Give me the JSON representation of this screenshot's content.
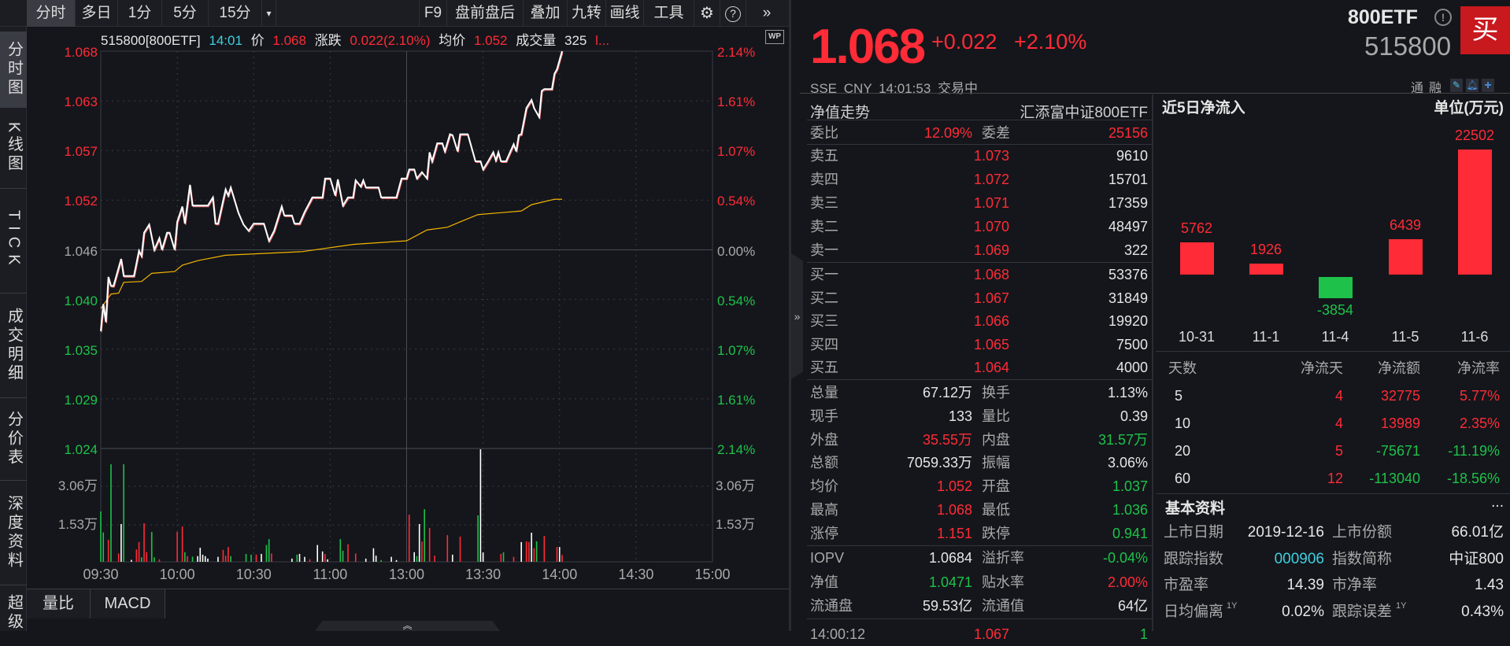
{
  "toolbar": {
    "left_tabs": [
      "分时",
      "多日",
      "1分",
      "5分",
      "15分"
    ],
    "active_tab": "分时",
    "dropdown_icon": "caret-down-icon",
    "right_items": [
      "F9",
      "盘前盘后",
      "叠加",
      "九转",
      "画线",
      "工具"
    ],
    "icons": [
      "gear-icon",
      "help-icon",
      "double-chevron-right-icon"
    ]
  },
  "sidebar": {
    "tabs": [
      "分时图",
      "K线图",
      "TICK",
      "成交明细",
      "分价表",
      "深度资料",
      "超级"
    ],
    "active": "分时图"
  },
  "info_line": {
    "code": "515800[800ETF]",
    "time": "14:01",
    "price_label": "价",
    "price": "1.068",
    "change_label": "涨跌",
    "change": "0.022(2.10%)",
    "avg_label": "均价",
    "avg": "1.052",
    "volume_label": "成交量",
    "volume": "325",
    "more": "l..."
  },
  "chart": {
    "type": "line",
    "prev_close": 1.046,
    "y_left_ticks": [
      "1.068",
      "1.063",
      "1.057",
      "1.052",
      "1.046",
      "1.040",
      "1.035",
      "1.029",
      "1.024"
    ],
    "y_right_ticks": [
      "2.14%",
      "1.61%",
      "1.07%",
      "0.54%",
      "0.00%",
      "0.54%",
      "1.07%",
      "1.61%",
      "2.14%"
    ],
    "ylim": [
      1.024,
      1.068
    ],
    "volume_ticks": [
      "3.06万",
      "1.53万"
    ],
    "volume_ylim": [
      0,
      4.59
    ],
    "x_ticks": [
      "09:30",
      "10:00",
      "10:30",
      "11:00",
      "13:00",
      "13:30",
      "14:00",
      "14:30",
      "15:00"
    ],
    "colors": {
      "price": "#ffffff",
      "avg": "#f5b400",
      "up": "#ff2b37",
      "down": "#1ec24b",
      "flat": "#ffffff"
    },
    "price": [
      [
        "09:30",
        1.037
      ],
      [
        "09:31",
        1.04
      ],
      [
        "09:32",
        1.038
      ],
      [
        "09:33",
        1.043
      ],
      [
        "09:34",
        1.042
      ],
      [
        "09:35",
        1.042
      ],
      [
        "09:38",
        1.045
      ],
      [
        "09:39",
        1.0431
      ],
      [
        "09:43",
        1.0431
      ],
      [
        "09:45",
        1.0459
      ],
      [
        "09:46",
        1.0453
      ],
      [
        "09:47",
        1.0479
      ],
      [
        "09:49",
        1.0488
      ],
      [
        "09:51",
        1.046
      ],
      [
        "09:53",
        1.0473
      ],
      [
        "09:54",
        1.046
      ],
      [
        "09:56",
        1.0479
      ],
      [
        "09:57",
        1.0479
      ],
      [
        "09:59",
        1.046
      ],
      [
        "10:00",
        1.0491
      ],
      [
        "10:02",
        1.0508
      ],
      [
        "10:03",
        1.0489
      ],
      [
        "10:05",
        1.0532
      ],
      [
        "10:06",
        1.0509
      ],
      [
        "10:12",
        1.0509
      ],
      [
        "10:14",
        1.0518
      ],
      [
        "10:15",
        1.0489
      ],
      [
        "10:16",
        1.0489
      ],
      [
        "10:19",
        1.0527
      ],
      [
        "10:20",
        1.052
      ],
      [
        "10:21",
        1.0529
      ],
      [
        "10:24",
        1.0501
      ],
      [
        "10:26",
        1.0488
      ],
      [
        "10:28",
        1.0481
      ],
      [
        "10:30",
        1.0489
      ],
      [
        "10:34",
        1.0489
      ],
      [
        "10:36",
        1.047
      ],
      [
        "10:38",
        1.0481
      ],
      [
        "10:41",
        1.0508
      ],
      [
        "10:42",
        1.0498
      ],
      [
        "10:45",
        1.0498
      ],
      [
        "10:46",
        1.0489
      ],
      [
        "10:48",
        1.0489
      ],
      [
        "10:50",
        1.0502
      ],
      [
        "10:53",
        1.0518
      ],
      [
        "10:57",
        1.0518
      ],
      [
        "10:58",
        1.0539
      ],
      [
        "11:00",
        1.0539
      ],
      [
        "11:02",
        1.052
      ],
      [
        "11:03",
        1.0538
      ],
      [
        "11:05",
        1.0509
      ],
      [
        "11:07",
        1.0518
      ],
      [
        "11:09",
        1.0518
      ],
      [
        "11:10",
        1.0537
      ],
      [
        "11:12",
        1.053
      ],
      [
        "11:13",
        1.0537
      ],
      [
        "11:14",
        1.0529
      ],
      [
        "11:19",
        1.0529
      ],
      [
        "11:20",
        1.0518
      ],
      [
        "11:26",
        1.0518
      ],
      [
        "11:28",
        1.0539
      ],
      [
        "13:00",
        1.0539
      ],
      [
        "13:01",
        1.0549
      ],
      [
        "13:03",
        1.0549
      ],
      [
        "13:04",
        1.0539
      ],
      [
        "13:06",
        1.0546
      ],
      [
        "13:08",
        1.0539
      ],
      [
        "13:09",
        1.0568
      ],
      [
        "13:10",
        1.0558
      ],
      [
        "13:12",
        1.0578
      ],
      [
        "13:14",
        1.0578
      ],
      [
        "13:15",
        1.0569
      ],
      [
        "13:17",
        1.0588
      ],
      [
        "13:18",
        1.0587
      ],
      [
        "13:20",
        1.0569
      ],
      [
        "13:21",
        1.0588
      ],
      [
        "13:24",
        1.0588
      ],
      [
        "13:27",
        1.0558
      ],
      [
        "13:29",
        1.0558
      ],
      [
        "13:30",
        1.0549
      ],
      [
        "13:32",
        1.0558
      ],
      [
        "13:34",
        1.0568
      ],
      [
        "13:35",
        1.0559
      ],
      [
        "13:36",
        1.0568
      ],
      [
        "13:37",
        1.0558
      ],
      [
        "13:39",
        1.0558
      ],
      [
        "13:42",
        1.0577
      ],
      [
        "13:43",
        1.0569
      ],
      [
        "13:44",
        1.0587
      ],
      [
        "13:45",
        1.0588
      ],
      [
        "13:47",
        1.0617
      ],
      [
        "13:49",
        1.0626
      ],
      [
        "13:50",
        1.0617
      ],
      [
        "13:52",
        1.0607
      ],
      [
        "13:53",
        1.0636
      ],
      [
        "13:54",
        1.0638
      ],
      [
        "13:57",
        1.0638
      ],
      [
        "13:58",
        1.0655
      ],
      [
        "13:59",
        1.066
      ],
      [
        "14:01",
        1.068
      ]
    ],
    "avg_price": [
      [
        "09:30",
        1.0395
      ],
      [
        "09:34",
        1.0411
      ],
      [
        "09:37",
        1.0412
      ],
      [
        "09:39",
        1.0424
      ],
      [
        "09:46",
        1.0425
      ],
      [
        "09:50",
        1.0434
      ],
      [
        "09:59",
        1.0436
      ],
      [
        "10:02",
        1.0443
      ],
      [
        "10:08",
        1.0448
      ],
      [
        "10:19",
        1.0454
      ],
      [
        "10:49",
        1.0458
      ],
      [
        "11:09",
        1.0466
      ],
      [
        "13:00",
        1.047
      ],
      [
        "13:08",
        1.0482
      ],
      [
        "13:16",
        1.0485
      ],
      [
        "13:21",
        1.0491
      ],
      [
        "13:28",
        1.0499
      ],
      [
        "13:45",
        1.0503
      ],
      [
        "13:49",
        1.051
      ],
      [
        "13:58",
        1.0516
      ],
      [
        "14:01",
        1.0516
      ]
    ],
    "volume": [
      [
        "09:30",
        2.04,
        "down"
      ],
      [
        "09:31",
        1.19,
        "down"
      ],
      [
        "09:33",
        0.89,
        "up"
      ],
      [
        "09:34",
        3.95,
        "down"
      ],
      [
        "09:37",
        0.34,
        "up"
      ],
      [
        "09:38",
        1.53,
        "flat"
      ],
      [
        "09:39",
        3.95,
        "down"
      ],
      [
        "09:42",
        0.08,
        "flat"
      ],
      [
        "09:44",
        0.5,
        "up"
      ],
      [
        "09:45",
        0.8,
        "up"
      ],
      [
        "09:46",
        0.18,
        "down"
      ],
      [
        "09:47",
        1.56,
        "up"
      ],
      [
        "09:48",
        0.39,
        "up"
      ],
      [
        "09:50",
        1.21,
        "down"
      ],
      [
        "09:51",
        0.18,
        "down"
      ],
      [
        "09:53",
        0.1,
        "up"
      ],
      [
        "10:00",
        1.21,
        "up"
      ],
      [
        "10:02",
        1.43,
        "up"
      ],
      [
        "10:03",
        0.39,
        "down"
      ],
      [
        "10:04",
        0.23,
        "up"
      ],
      [
        "10:06",
        0.21,
        "down"
      ],
      [
        "10:08",
        0.23,
        "flat"
      ],
      [
        "10:09",
        0.57,
        "flat"
      ],
      [
        "10:10",
        0.29,
        "flat"
      ],
      [
        "10:11",
        0.23,
        "flat"
      ],
      [
        "10:12",
        0.13,
        "flat"
      ],
      [
        "10:16",
        0.2,
        "flat"
      ],
      [
        "10:18",
        0.48,
        "up"
      ],
      [
        "10:19",
        0.25,
        "up"
      ],
      [
        "10:20",
        0.6,
        "up"
      ],
      [
        "10:21",
        0.23,
        "down"
      ],
      [
        "10:27",
        0.32,
        "down"
      ],
      [
        "10:29",
        0.29,
        "down"
      ],
      [
        "10:31",
        0.29,
        "up"
      ],
      [
        "10:33",
        0.32,
        "flat"
      ],
      [
        "10:35",
        0.68,
        "down"
      ],
      [
        "10:36",
        0.92,
        "down"
      ],
      [
        "10:37",
        0.34,
        "up"
      ],
      [
        "10:45",
        0.13,
        "flat"
      ],
      [
        "10:47",
        0.29,
        "down"
      ],
      [
        "10:48",
        0.32,
        "flat"
      ],
      [
        "10:50",
        0.2,
        "flat"
      ],
      [
        "10:52",
        0.1,
        "up"
      ],
      [
        "10:55",
        0.68,
        "flat"
      ],
      [
        "10:57",
        0.42,
        "flat"
      ],
      [
        "10:58",
        0.32,
        "up"
      ],
      [
        "10:59",
        0.1,
        "flat"
      ],
      [
        "11:04",
        0.92,
        "down"
      ],
      [
        "11:05",
        0.45,
        "down"
      ],
      [
        "11:07",
        0.71,
        "up"
      ],
      [
        "11:10",
        0.34,
        "up"
      ],
      [
        "11:14",
        0.13,
        "flat"
      ],
      [
        "11:17",
        0.55,
        "flat"
      ],
      [
        "11:18",
        0.25,
        "flat"
      ],
      [
        "11:20",
        0.07,
        "down"
      ],
      [
        "11:24",
        0.2,
        "flat"
      ],
      [
        "11:26",
        0.07,
        "flat"
      ],
      [
        "13:01",
        1.91,
        "up"
      ],
      [
        "13:03",
        0.39,
        "flat"
      ],
      [
        "13:04",
        0.23,
        "down"
      ],
      [
        "13:05",
        1.53,
        "flat"
      ],
      [
        "13:06",
        0.82,
        "up"
      ],
      [
        "13:07",
        2.13,
        "down"
      ],
      [
        "13:09",
        1.37,
        "up"
      ],
      [
        "13:11",
        0.25,
        "up"
      ],
      [
        "13:16",
        1.08,
        "up"
      ],
      [
        "13:18",
        0.29,
        "flat"
      ],
      [
        "13:21",
        1.02,
        "up"
      ],
      [
        "13:28",
        1.88,
        "down"
      ],
      [
        "13:29",
        4.56,
        "flat"
      ],
      [
        "13:30",
        0.38,
        "flat"
      ],
      [
        "13:37",
        0.32,
        "up"
      ],
      [
        "13:38",
        0.38,
        "down"
      ],
      [
        "13:42",
        0.2,
        "up"
      ],
      [
        "13:45",
        0.8,
        "flat"
      ],
      [
        "13:47",
        0.83,
        "up"
      ],
      [
        "13:48",
        0.8,
        "up"
      ],
      [
        "13:49",
        1.18,
        "flat"
      ],
      [
        "13:50",
        0.55,
        "up"
      ],
      [
        "13:51",
        0.83,
        "down"
      ],
      [
        "13:54",
        1.05,
        "up"
      ],
      [
        "13:59",
        0.6,
        "up"
      ],
      [
        "14:00",
        0.6,
        "flat"
      ],
      [
        "14:01",
        0.28,
        "up"
      ]
    ]
  },
  "bottom_tabs": [
    "量比",
    "MACD"
  ],
  "quote": {
    "price": "1.068",
    "change": "+0.022",
    "change_pct": "+2.10%",
    "name": "800ETF",
    "code": "515800",
    "buy_label": "买",
    "market": "SSE",
    "currency": "CNY",
    "time": "14:01:53",
    "status": "交易中",
    "tags": [
      "通",
      "融"
    ],
    "action_icons": [
      "pencil-icon",
      "bell-icon",
      "plus-icon"
    ]
  },
  "nav_header": {
    "label": "净值走势",
    "fund_name": "汇添富中证800ETF"
  },
  "order_book": {
    "ratio": {
      "label": "委比",
      "value": "12.09%",
      "label2": "委差",
      "value2": "25156"
    },
    "asks": [
      [
        "卖五",
        "1.073",
        "9610"
      ],
      [
        "卖四",
        "1.072",
        "15701"
      ],
      [
        "卖三",
        "1.071",
        "17359"
      ],
      [
        "卖二",
        "1.070",
        "48497"
      ],
      [
        "卖一",
        "1.069",
        "322"
      ]
    ],
    "bids": [
      [
        "买一",
        "1.068",
        "53376"
      ],
      [
        "买二",
        "1.067",
        "31849"
      ],
      [
        "买三",
        "1.066",
        "19920"
      ],
      [
        "买四",
        "1.065",
        "7500"
      ],
      [
        "买五",
        "1.064",
        "4000"
      ]
    ],
    "stats": [
      {
        "l1": "总量",
        "v1": "67.12万",
        "t1": "flat",
        "l2": "换手",
        "v2": "1.13%",
        "t2": "flat"
      },
      {
        "l1": "现手",
        "v1": "133",
        "t1": "flat",
        "l2": "量比",
        "v2": "0.39",
        "t2": "flat"
      },
      {
        "l1": "外盘",
        "v1": "35.55万",
        "t1": "up",
        "l2": "内盘",
        "v2": "31.57万",
        "t2": "down"
      },
      {
        "l1": "总额",
        "v1": "7059.33万",
        "t1": "flat",
        "l2": "振幅",
        "v2": "3.06%",
        "t2": "flat"
      },
      {
        "l1": "均价",
        "v1": "1.052",
        "t1": "up",
        "l2": "开盘",
        "v2": "1.037",
        "t2": "down"
      },
      {
        "l1": "最高",
        "v1": "1.068",
        "t1": "up",
        "l2": "最低",
        "v2": "1.036",
        "t2": "down"
      },
      {
        "l1": "涨停",
        "v1": "1.151",
        "t1": "up",
        "l2": "跌停",
        "v2": "0.941",
        "t2": "down"
      }
    ],
    "etf": [
      {
        "l1": "IOPV",
        "v1": "1.0684",
        "t1": "flat",
        "l2": "溢折率",
        "v2": "-0.04%",
        "t2": "down"
      },
      {
        "l1": "净值",
        "v1": "1.0471",
        "t1": "down",
        "l2": "贴水率",
        "v2": "2.00%",
        "t2": "up"
      },
      {
        "l1": "流通盘",
        "v1": "59.53亿",
        "t1": "flat",
        "l2": "流通值",
        "v2": "64亿",
        "t2": "flat"
      }
    ],
    "last_trade": {
      "time": "14:00:12",
      "price": "1.067",
      "volume": "1"
    }
  },
  "net_flow": {
    "title": "近5日净流入",
    "unit": "单位(万元)",
    "chart_data": {
      "type": "bar",
      "categories": [
        "10-31",
        "11-1",
        "11-4",
        "11-5",
        "11-6"
      ],
      "values": [
        5762,
        1926,
        -3854,
        6439,
        22502
      ]
    },
    "table_header": [
      "天数",
      "净流天",
      "净流额",
      "净流率"
    ],
    "rows": [
      {
        "days": "5",
        "inflow_days": "4",
        "amount": "32775",
        "amount_t": "up",
        "rate": "5.77%",
        "rate_t": "up"
      },
      {
        "days": "10",
        "inflow_days": "4",
        "amount": "13989",
        "amount_t": "up",
        "rate": "2.35%",
        "rate_t": "up"
      },
      {
        "days": "20",
        "inflow_days": "5",
        "amount": "-75671",
        "amount_t": "down",
        "rate": "-11.19%",
        "rate_t": "down"
      },
      {
        "days": "60",
        "inflow_days": "12",
        "amount": "-113040",
        "amount_t": "down",
        "rate": "-18.56%",
        "rate_t": "down"
      }
    ]
  },
  "basic_info": {
    "title": "基本资料",
    "more": "...",
    "rows": [
      {
        "l1": "上市日期",
        "v1": "2019-12-16",
        "l2": "上市份额",
        "v2": "66.01亿"
      },
      {
        "l1": "跟踪指数",
        "v1": "000906",
        "l2": "指数简称",
        "v2": "中证800"
      },
      {
        "l1": "市盈率",
        "v1": "14.39",
        "l2": "市净率",
        "v2": "1.43"
      },
      {
        "l1": "日均偏离",
        "s1": "1Y",
        "v1": "0.02%",
        "l2": "跟踪误差",
        "s2": "1Y",
        "v2": "0.43%"
      }
    ]
  }
}
